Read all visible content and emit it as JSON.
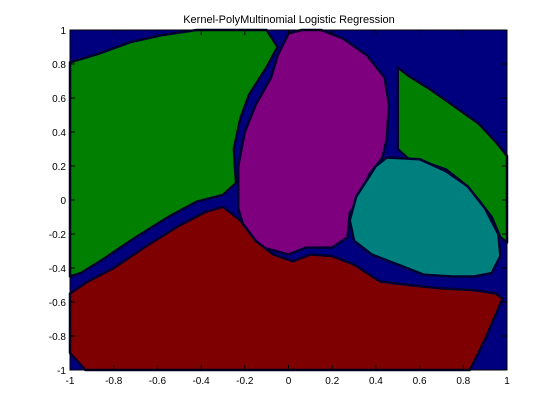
{
  "chart_data": {
    "type": "heatmap",
    "title": "Kernel-PolyMultinomial Logistic Regression",
    "xlabel": "",
    "ylabel": "",
    "xlim": [
      -1,
      1
    ],
    "ylim": [
      -1,
      1
    ],
    "xticks": [
      "-1",
      "-0.8",
      "-0.6",
      "-0.4",
      "-0.2",
      "0",
      "0.2",
      "0.4",
      "0.6",
      "0.8",
      "1"
    ],
    "yticks": [
      "1",
      "0.8",
      "0.6",
      "0.4",
      "0.2",
      "0",
      "-0.2",
      "-0.4",
      "-0.6",
      "-0.8",
      "-1"
    ],
    "grid": false,
    "legend": "none",
    "regions": [
      {
        "class": "background",
        "color": "#00007f",
        "polygon": [
          [
            -1,
            -1
          ],
          [
            1,
            -1
          ],
          [
            1,
            1
          ],
          [
            -1,
            1
          ]
        ]
      },
      {
        "class": "green-left",
        "color": "#007f00",
        "polygon": [
          [
            -1,
            0.81
          ],
          [
            -0.87,
            0.86
          ],
          [
            -0.72,
            0.93
          ],
          [
            -0.58,
            0.97
          ],
          [
            -0.42,
            1.0
          ],
          [
            -0.1,
            1.0
          ],
          [
            -0.05,
            0.9
          ],
          [
            -0.1,
            0.78
          ],
          [
            -0.18,
            0.62
          ],
          [
            -0.22,
            0.48
          ],
          [
            -0.25,
            0.3
          ],
          [
            -0.24,
            0.1
          ],
          [
            -0.3,
            0.03
          ],
          [
            -0.42,
            -0.01
          ],
          [
            -0.55,
            -0.1
          ],
          [
            -0.7,
            -0.22
          ],
          [
            -0.85,
            -0.35
          ],
          [
            -0.95,
            -0.43
          ],
          [
            -1,
            -0.45
          ]
        ]
      },
      {
        "class": "purple-center",
        "color": "#7f007f",
        "polygon": [
          [
            0.06,
            1.0
          ],
          [
            0.15,
            1.0
          ],
          [
            0.25,
            0.95
          ],
          [
            0.36,
            0.85
          ],
          [
            0.44,
            0.72
          ],
          [
            0.46,
            0.56
          ],
          [
            0.45,
            0.36
          ],
          [
            0.43,
            0.25
          ],
          [
            0.37,
            0.15
          ],
          [
            0.33,
            0.02
          ],
          [
            0.28,
            -0.08
          ],
          [
            0.27,
            -0.22
          ],
          [
            0.2,
            -0.28
          ],
          [
            0.08,
            -0.28
          ],
          [
            0.0,
            -0.32
          ],
          [
            -0.06,
            -0.3
          ],
          [
            -0.12,
            -0.28
          ],
          [
            -0.2,
            -0.18
          ],
          [
            -0.23,
            -0.05
          ],
          [
            -0.23,
            0.2
          ],
          [
            -0.2,
            0.4
          ],
          [
            -0.15,
            0.56
          ],
          [
            -0.08,
            0.72
          ],
          [
            -0.05,
            0.85
          ],
          [
            0.0,
            0.98
          ]
        ]
      },
      {
        "class": "green-right",
        "color": "#007f00",
        "polygon": [
          [
            0.5,
            0.78
          ],
          [
            0.55,
            0.73
          ],
          [
            0.65,
            0.65
          ],
          [
            0.76,
            0.55
          ],
          [
            0.87,
            0.45
          ],
          [
            0.95,
            0.34
          ],
          [
            1,
            0.26
          ],
          [
            1,
            -0.25
          ],
          [
            0.97,
            -0.22
          ],
          [
            0.93,
            -0.1
          ],
          [
            0.87,
            0.0
          ],
          [
            0.8,
            0.1
          ],
          [
            0.72,
            0.18
          ],
          [
            0.63,
            0.22
          ],
          [
            0.55,
            0.24
          ],
          [
            0.5,
            0.3
          ],
          [
            0.5,
            0.5
          ]
        ]
      },
      {
        "class": "teal-right",
        "color": "#007f7f",
        "polygon": [
          [
            0.45,
            0.25
          ],
          [
            0.6,
            0.24
          ],
          [
            0.72,
            0.17
          ],
          [
            0.82,
            0.08
          ],
          [
            0.9,
            -0.05
          ],
          [
            0.96,
            -0.2
          ],
          [
            0.97,
            -0.33
          ],
          [
            0.93,
            -0.43
          ],
          [
            0.85,
            -0.45
          ],
          [
            0.75,
            -0.45
          ],
          [
            0.62,
            -0.44
          ],
          [
            0.5,
            -0.38
          ],
          [
            0.38,
            -0.32
          ],
          [
            0.3,
            -0.24
          ],
          [
            0.28,
            -0.12
          ],
          [
            0.31,
            0.02
          ],
          [
            0.36,
            0.12
          ],
          [
            0.4,
            0.2
          ]
        ]
      },
      {
        "class": "red-bottom",
        "color": "#7f0000",
        "polygon": [
          [
            -1,
            -0.55
          ],
          [
            -0.92,
            -0.48
          ],
          [
            -0.8,
            -0.4
          ],
          [
            -0.65,
            -0.27
          ],
          [
            -0.5,
            -0.15
          ],
          [
            -0.38,
            -0.07
          ],
          [
            -0.3,
            -0.04
          ],
          [
            -0.22,
            -0.12
          ],
          [
            -0.15,
            -0.24
          ],
          [
            -0.07,
            -0.32
          ],
          [
            0.02,
            -0.36
          ],
          [
            0.1,
            -0.32
          ],
          [
            0.2,
            -0.33
          ],
          [
            0.3,
            -0.38
          ],
          [
            0.42,
            -0.48
          ],
          [
            0.55,
            -0.5
          ],
          [
            0.7,
            -0.52
          ],
          [
            0.85,
            -0.53
          ],
          [
            0.95,
            -0.55
          ],
          [
            0.98,
            -0.58
          ],
          [
            0.9,
            -0.82
          ],
          [
            0.83,
            -1
          ],
          [
            -0.93,
            -1
          ],
          [
            -1,
            -0.9
          ]
        ]
      }
    ]
  }
}
